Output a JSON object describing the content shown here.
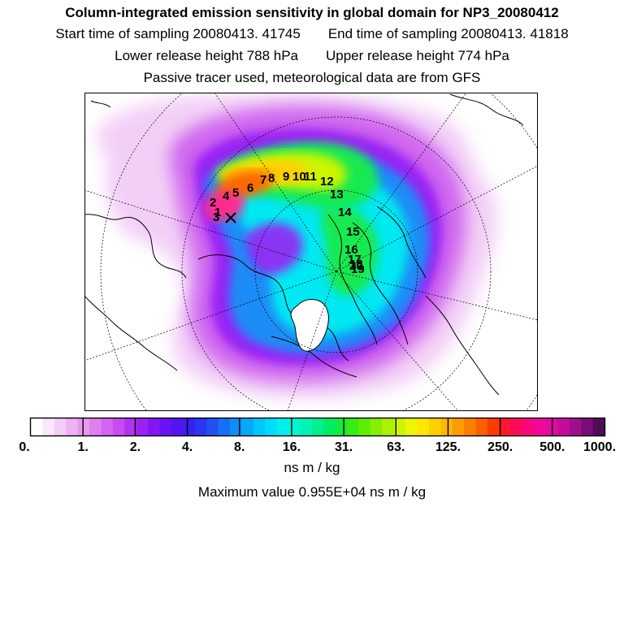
{
  "header": {
    "title": "Column-integrated emission sensitivity in global domain for NP3_20080412",
    "start_label": "Start time of sampling 20080413. 41745",
    "end_label": "End time of sampling 20080413. 41818",
    "lower_label": "Lower release height  788 hPa",
    "upper_label": "Upper release height  774 hPa",
    "note": "Passive tracer used, meteorological data are from GFS"
  },
  "colorbar": {
    "tick_labels": [
      "0.",
      "1.",
      "2.",
      "4.",
      "8.",
      "16.",
      "31.",
      "63.",
      "125.",
      "250.",
      "500.",
      "1000."
    ],
    "colors": [
      "#ffffff",
      "#fbe6fb",
      "#f4cdf6",
      "#eeb3f3",
      "#e899ef",
      "#df7fee",
      "#d463ee",
      "#c64bf0",
      "#b134f2",
      "#9a22f4",
      "#8415f5",
      "#6d12f4",
      "#5314f1",
      "#3a1ff0",
      "#2a36f0",
      "#1f52f2",
      "#1670f5",
      "#0d8ef7",
      "#06aaf9",
      "#02c5fb",
      "#00ddfc",
      "#00efef",
      "#00f5d4",
      "#00f5b3",
      "#00f08f",
      "#00ec66",
      "#12ea3c",
      "#38ec15",
      "#5eee00",
      "#86f000",
      "#aaf200",
      "#cdf400",
      "#eef500",
      "#fbe800",
      "#fdd100",
      "#feb700",
      "#fe9c00",
      "#fe7f00",
      "#fe5f00",
      "#fe3c00",
      "#ff1630",
      "#ff0a5a",
      "#fb067d",
      "#f00898",
      "#e00a9f",
      "#c40c99",
      "#a20d8e",
      "#7c0c7a",
      "#520a5a"
    ]
  },
  "map": {
    "track_labels": [
      "1",
      "2",
      "3",
      "4",
      "5",
      "6",
      "7",
      "8",
      "9",
      "10",
      "11",
      "12",
      "13",
      "14",
      "15",
      "16",
      "17",
      "18",
      "19",
      "20"
    ],
    "colors": {
      "land": "#000000",
      "greenland": "#ffffff",
      "ocean_high": "#ff2a90",
      "release_point": "#000000"
    }
  },
  "footer": {
    "units": "ns m / kg",
    "max_value": "Maximum value  0.955E+04 ns m / kg"
  }
}
